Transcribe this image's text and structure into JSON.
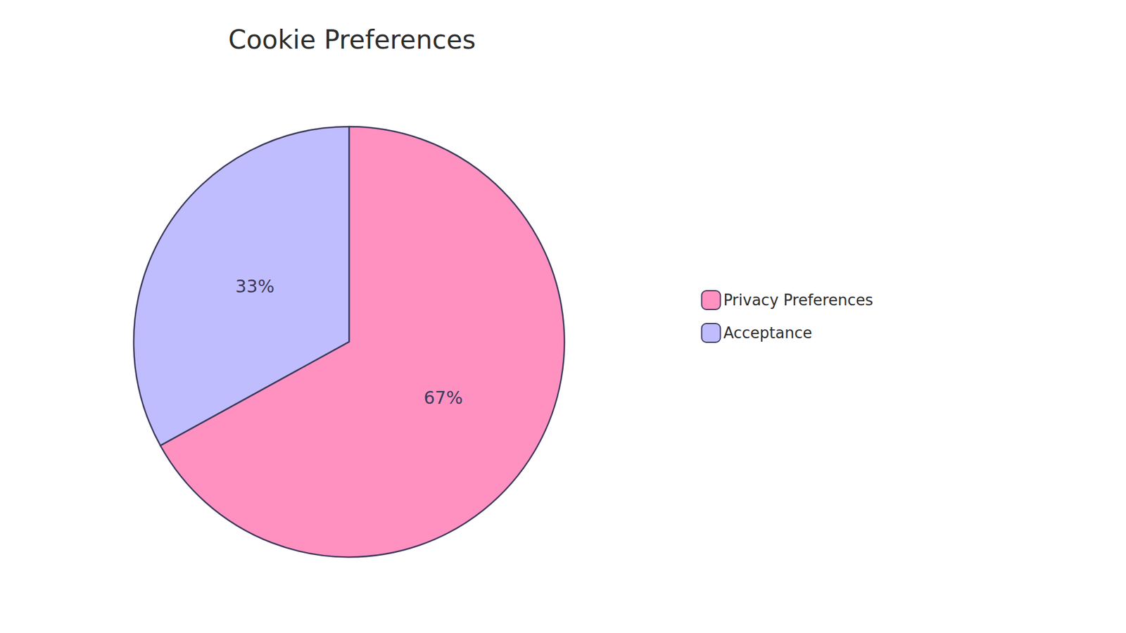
{
  "chart_data": {
    "type": "pie",
    "title": "Cookie Preferences",
    "categories": [
      "Privacy Preferences",
      "Acceptance"
    ],
    "values": [
      67,
      33
    ],
    "value_labels": [
      "67%",
      "33%"
    ],
    "colors": [
      "#FF91C1",
      "#C0BDFF"
    ],
    "data_labels": true,
    "legend": "right"
  }
}
